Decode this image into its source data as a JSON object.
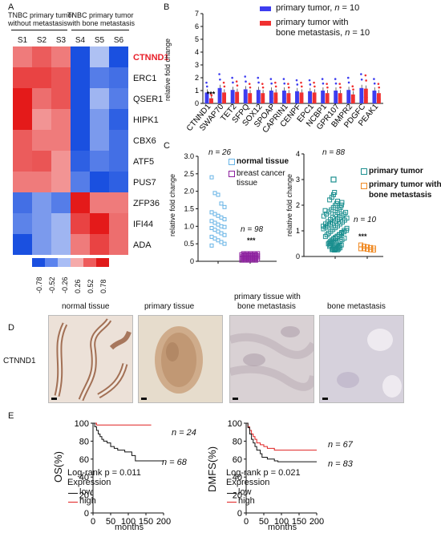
{
  "panels": {
    "A": "A",
    "B": "B",
    "C": "C",
    "D": "D",
    "E": "E"
  },
  "heatmap": {
    "group1_title_line1": "TNBC primary tumor",
    "group1_title_line2": "without metastasis",
    "group2_title_line1": "TNBC primary tumor",
    "group2_title_line2": "with bone metastasis",
    "samples": [
      "S1",
      "S2",
      "S3",
      "S4",
      "S5",
      "S6"
    ],
    "genes": [
      "CTNND1",
      "ERC1",
      "QSER1",
      "HIPK1",
      "CBX6",
      "ATF5",
      "PUS7",
      "ZFP36",
      "IFI44",
      "ADA"
    ],
    "highlight_gene": "CTNND1",
    "highlight_color": "#e8202a",
    "values": [
      [
        0.4,
        0.52,
        0.4,
        -0.78,
        -0.2,
        -0.78
      ],
      [
        0.62,
        0.62,
        0.55,
        -0.78,
        -0.55,
        -0.62
      ],
      [
        0.78,
        0.45,
        0.55,
        -0.78,
        -0.26,
        -0.55
      ],
      [
        0.78,
        0.3,
        0.4,
        -0.78,
        -0.4,
        -0.7
      ],
      [
        0.52,
        0.4,
        0.4,
        -0.78,
        -0.4,
        -0.62
      ],
      [
        0.52,
        0.55,
        0.3,
        -0.7,
        -0.55,
        -0.62
      ],
      [
        0.4,
        0.4,
        0.3,
        -0.55,
        -0.78,
        -0.7
      ],
      [
        -0.62,
        -0.4,
        -0.55,
        0.78,
        0.4,
        0.4
      ],
      [
        -0.52,
        -0.4,
        -0.26,
        0.62,
        0.78,
        0.45
      ],
      [
        -0.78,
        -0.4,
        -0.26,
        0.4,
        0.62,
        0.45
      ]
    ],
    "scale_labels": [
      "-0.78",
      "-0.52",
      "-0.26",
      "0.26",
      "0.52",
      "0.78"
    ],
    "scale_colors": [
      "#1a4fe0",
      "#5b83ee",
      "#a9bdf5",
      "#f5aaaa",
      "#ee5b5b",
      "#e01a1a"
    ]
  },
  "panelB": {
    "ylabel": "relative fold change",
    "legend": [
      {
        "name": "primary tumor, n = 10",
        "color": "#3d3df0"
      },
      {
        "name": "primary tumor with bone metastasis, n = 10",
        "color": "#f03030"
      }
    ],
    "legend_line1": "primary tumor, ",
    "legend_n1": "n",
    "legend_tail1": " = 10",
    "legend_line2a": "primary tumor with",
    "legend_line2b": "bone metastasis, ",
    "legend_n2": "n",
    "legend_tail2": " = 10",
    "significance": "***",
    "yticks": [
      "0",
      "1",
      "2",
      "3",
      "4",
      "5",
      "6",
      "7"
    ]
  },
  "chart_data": {
    "type": "bar",
    "ylabel": "relative fold change",
    "ylim": [
      0,
      7
    ],
    "categories": [
      "CTNND1",
      "SWAP70",
      "TET2",
      "SFPQ",
      "SOX12",
      "SPOAP",
      "CAPRIN1",
      "CENPF",
      "EPC1",
      "NCBP1",
      "GPR107",
      "BMPR2",
      "PDGFC",
      "PEAK1"
    ],
    "series": [
      {
        "name": "primary tumor, n = 10",
        "values": [
          0.85,
          1.2,
          1.05,
          1.1,
          1.05,
          1.0,
          1.0,
          0.95,
          0.95,
          1.0,
          1.0,
          1.05,
          1.2,
          1.0
        ]
      },
      {
        "name": "primary tumor with bone metastasis, n = 10",
        "values": [
          0.4,
          0.85,
          0.9,
          0.8,
          0.8,
          0.85,
          0.8,
          0.85,
          0.85,
          0.8,
          0.8,
          0.7,
          1.15,
          0.8
        ]
      }
    ]
  },
  "panelC1": {
    "ylabel": "relative fold change",
    "yticks": [
      "0",
      "0.5",
      "1.0",
      "1.5",
      "2.0",
      "2.5",
      "3.0"
    ],
    "n_normal": "n = 26",
    "n_cancer": "n = 98",
    "legend1": "normal tissue",
    "legend2a": "breast cancer",
    "legend2b": "tissue",
    "sig": "***",
    "colors": [
      "#66b3e6",
      "#8c1f9e"
    ]
  },
  "panelC2": {
    "ylabel": "relative fold change",
    "yticks": [
      "0",
      "1",
      "2",
      "3",
      "4"
    ],
    "n_primary": "n = 88",
    "n_meta": "n = 10",
    "legend1": "primary tumor",
    "legend2a": "primary tumor with",
    "legend2b": "bone metastasis",
    "sig": "***",
    "colors": [
      "#1b8f8f",
      "#f08a24"
    ]
  },
  "panelD": {
    "row_label": "CTNND1",
    "titles": [
      "normal tissue",
      "primary tissue",
      "primary tissue with",
      "bone metastasis",
      "bone metastasis"
    ]
  },
  "panelE": {
    "os": {
      "ylabel": "OS(%)",
      "n_high": "n = 24",
      "n_low": "n = 68",
      "logrank": "Log-rank p = 0.011"
    },
    "dmfs": {
      "ylabel": "DMFS(%)",
      "n_high": "n = 67",
      "n_low": "n = 83",
      "logrank": "Log-rank p = 0.021"
    },
    "expression": "Expression",
    "low": "low",
    "high": "high",
    "xlabel": "months",
    "xticks": [
      "0",
      "50",
      "100",
      "150",
      "200"
    ],
    "yticks": [
      "0",
      "20",
      "40",
      "60",
      "80",
      "100"
    ],
    "low_color": "#111111",
    "high_color": "#e02020"
  }
}
